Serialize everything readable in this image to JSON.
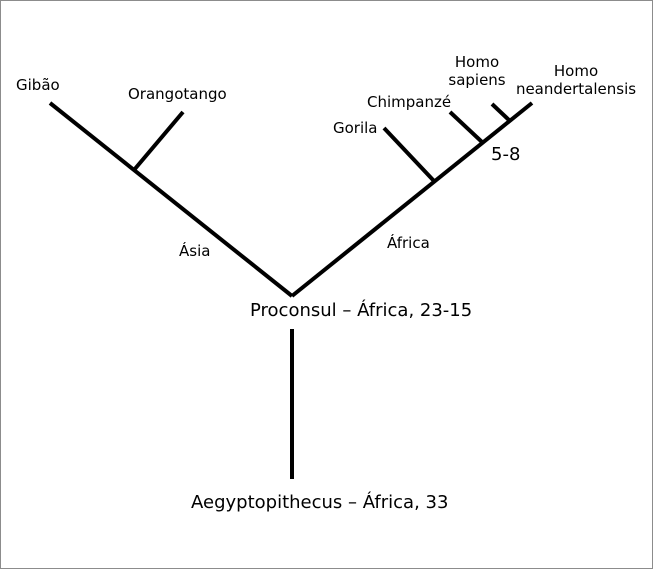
{
  "colors": {
    "line": "#000000",
    "border": "#8c8c8c",
    "background": "#ffffff"
  },
  "species": {
    "gibbon": "Gibão",
    "orangutan": "Orangotango",
    "gorilla": "Gorila",
    "chimpanzee": "Chimpanzé",
    "homo_sapiens": [
      "Homo",
      "sapiens"
    ],
    "homo_neanderthalensis": [
      "Homo",
      "neandertalensis"
    ]
  },
  "branches": {
    "asia": "Ásia",
    "africa": "África",
    "split_age": "5-8"
  },
  "ancestors": {
    "proconsul": "Proconsul – África, 23-15",
    "aegyptopithecus": "Aegyptopithecus – África, 33"
  }
}
